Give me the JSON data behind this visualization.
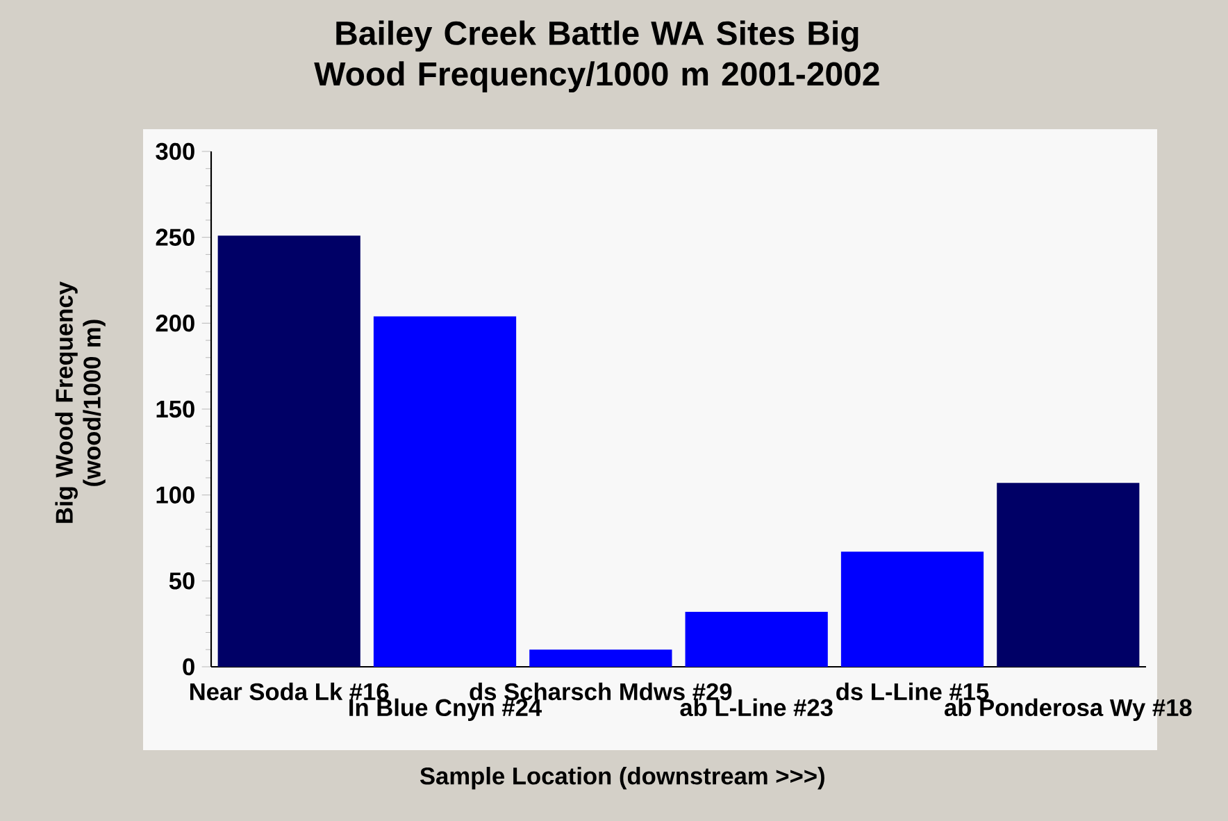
{
  "chart_data": {
    "type": "bar",
    "title": "Bailey Creek Battle WA Sites Big Wood Frequency/1000 m 2001-2002",
    "xlabel": "Sample Location (downstream >>>)",
    "ylabel": "Big Wood Frequency (wood/1000 m)",
    "categories": [
      "Near Soda Lk #16",
      "In Blue Cnyn #24",
      "ds Scharsch Mdws #29",
      "ab L-Line #23",
      "ds L-Line #15",
      "ab Ponderosa Wy #18"
    ],
    "values": [
      251,
      204,
      10,
      32,
      67,
      107
    ],
    "colors": [
      "#000066",
      "#0000ff",
      "#0000ff",
      "#0000ff",
      "#0000ff",
      "#000066"
    ],
    "ylim": [
      0,
      300
    ],
    "yticks": [
      0,
      50,
      100,
      150,
      200,
      250,
      300
    ]
  }
}
